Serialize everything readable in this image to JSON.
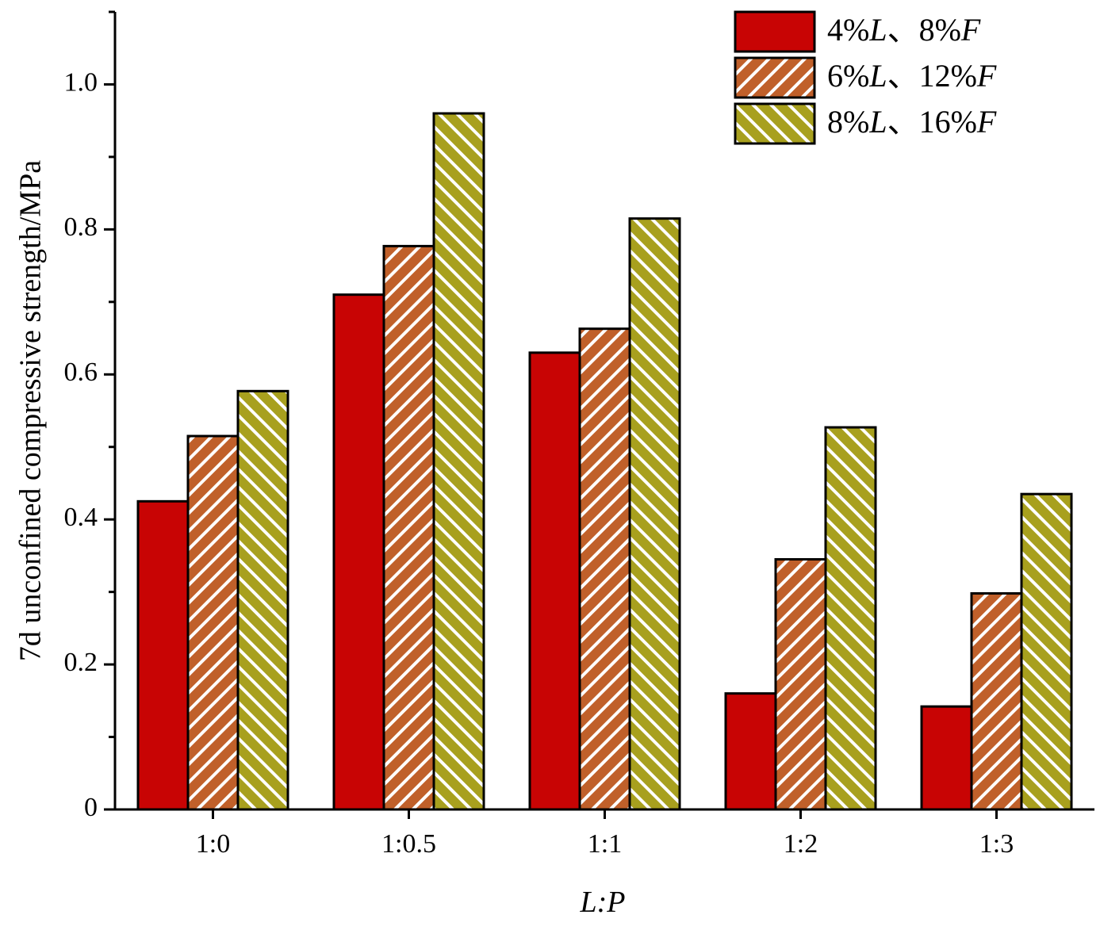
{
  "chart_data": {
    "type": "bar",
    "xlabel": "L:P",
    "ylabel": "7d unconfined compressive strength/MPa",
    "categories": [
      "1:0",
      "1:0.5",
      "1:1",
      "1:2",
      "1:3"
    ],
    "ylim": [
      0,
      1.1
    ],
    "y_ticks": [
      0,
      0.2,
      0.4,
      0.6,
      0.8,
      1.0
    ],
    "y_tick_labels": [
      "0",
      "0.2",
      "0.4",
      "0.6",
      "0.8",
      "1.0"
    ],
    "grid": false,
    "legend_position": "top-right",
    "series": [
      {
        "name": "4%L、8%F",
        "values": [
          0.425,
          0.71,
          0.63,
          0.16,
          0.142
        ],
        "color": "#c80404",
        "pattern": "solid"
      },
      {
        "name": "6%L、12%F",
        "values": [
          0.515,
          0.777,
          0.663,
          0.345,
          0.298
        ],
        "color": "#c0602a",
        "pattern": "hatch-right"
      },
      {
        "name": "8%L、16%F",
        "values": [
          0.577,
          0.96,
          0.815,
          0.527,
          0.435
        ],
        "color": "#a8a01e",
        "pattern": "hatch-left"
      }
    ]
  }
}
